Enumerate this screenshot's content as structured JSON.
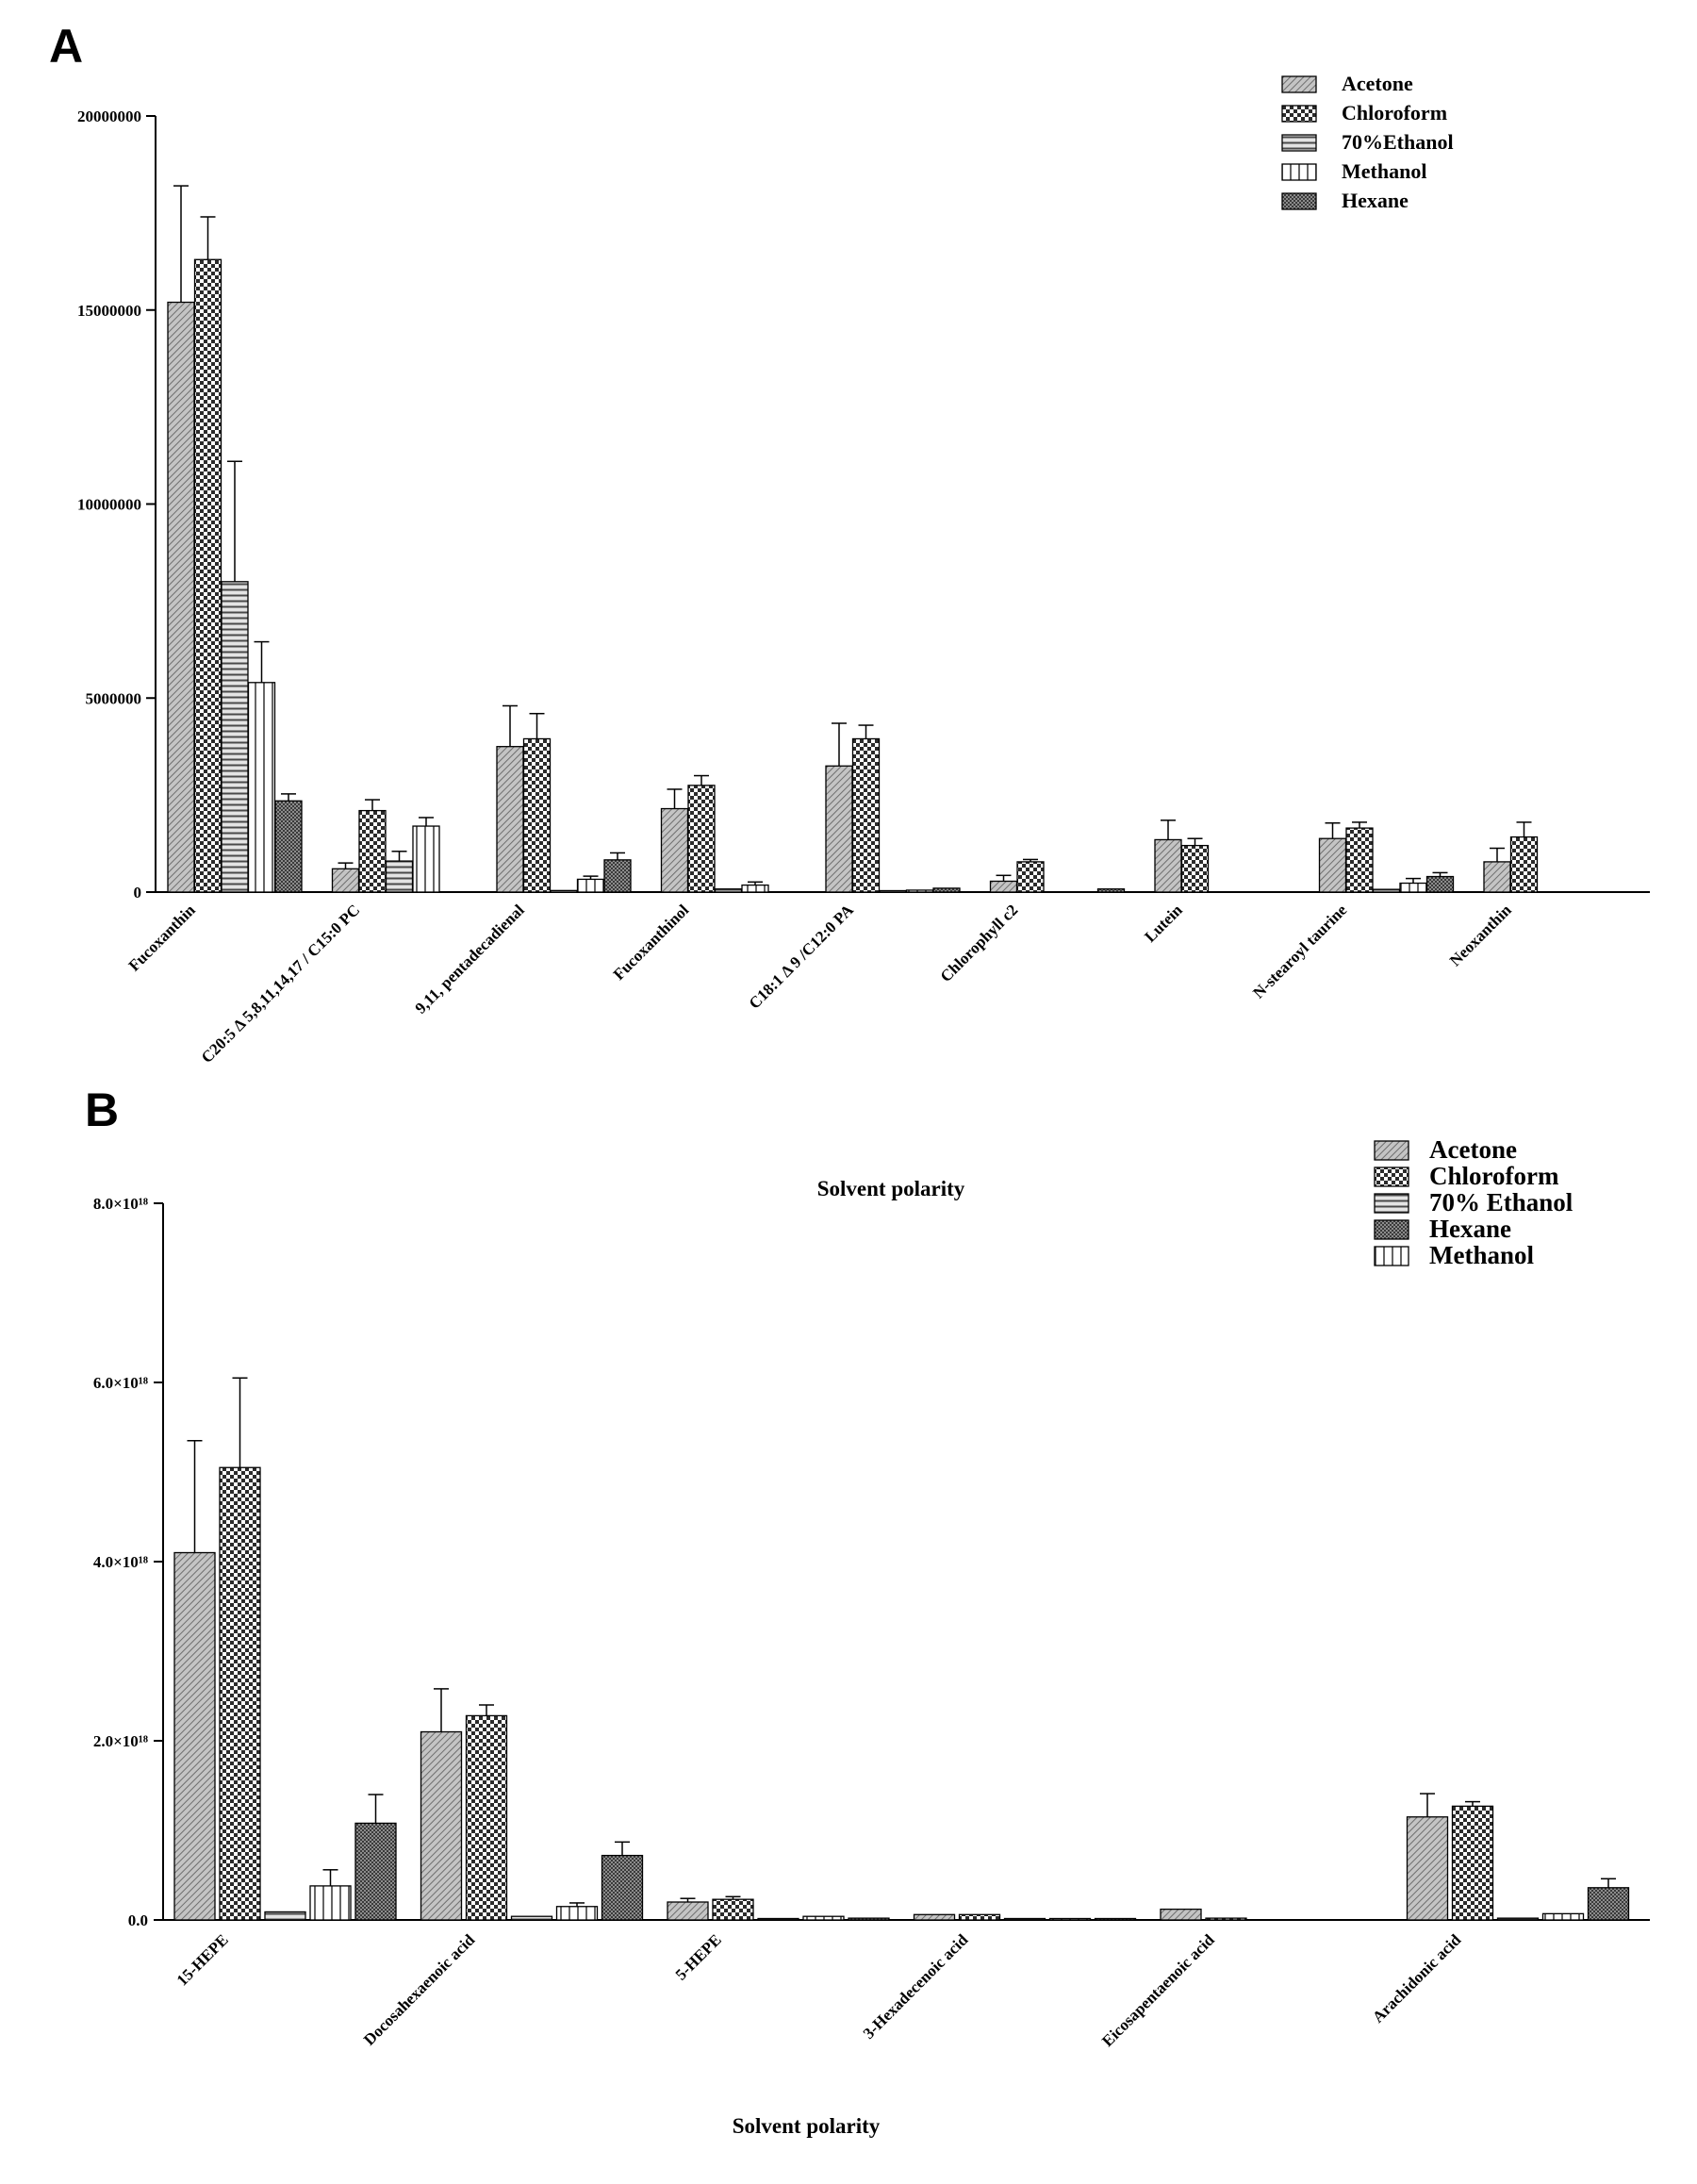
{
  "chart_data": [
    {
      "panel": "A",
      "type": "bar",
      "title": "",
      "xlabel": "Solvent polarity",
      "ylabel": "",
      "ylim": [
        0,
        20000000
      ],
      "yticks": [
        0,
        5000000,
        10000000,
        15000000,
        20000000
      ],
      "ytick_labels": [
        "0",
        "5000000",
        "10000000",
        "15000000",
        "20000000"
      ],
      "legend_position": "top-right",
      "categories": [
        "Fucoxanthin",
        "C20:5 Δ 5,8,11,14,17 / C15:0 PC",
        "9,11, pentadecadienal",
        "Fucoxanthinol",
        "C18:1 Δ 9 /C12:0 PA",
        "Chlorophyll c2",
        "Lutein",
        "N-stearoyl taurine",
        "Neoxanthin"
      ],
      "series": [
        {
          "name": "Acetone",
          "pattern": "diag",
          "values": [
            15200000,
            600000,
            3750000,
            2150000,
            3250000,
            280000,
            1350000,
            1380000,
            780000
          ],
          "errors": [
            3000000,
            150000,
            1050000,
            500000,
            1100000,
            150000,
            500000,
            400000,
            350000
          ]
        },
        {
          "name": " Chloroform",
          "pattern": "check",
          "values": [
            16300000,
            2100000,
            3950000,
            2750000,
            3950000,
            780000,
            1200000,
            1650000,
            1420000
          ],
          "errors": [
            1100000,
            280000,
            650000,
            250000,
            350000,
            60000,
            180000,
            150000,
            380000
          ]
        },
        {
          "name": "70%Ethanol",
          "pattern": "hlines",
          "values": [
            8000000,
            800000,
            40000,
            80000,
            20000,
            0,
            0,
            70000,
            0
          ],
          "errors": [
            3100000,
            250000,
            0,
            0,
            0,
            0,
            0,
            0,
            0
          ]
        },
        {
          "name": "Methanol",
          "pattern": "vlines",
          "values": [
            5400000,
            1700000,
            330000,
            180000,
            50000,
            0,
            0,
            230000,
            0
          ],
          "errors": [
            1050000,
            220000,
            80000,
            80000,
            0,
            0,
            0,
            120000,
            0
          ]
        },
        {
          "name": "Hexane",
          "pattern": "dense",
          "values": [
            2350000,
            0,
            830000,
            0,
            100000,
            80000,
            0,
            400000,
            0
          ],
          "errors": [
            180000,
            0,
            180000,
            0,
            0,
            0,
            0,
            100000,
            0
          ]
        }
      ]
    },
    {
      "panel": "B",
      "type": "bar",
      "title": "",
      "xlabel": "Solvent polarity",
      "ylabel": "",
      "ylim": [
        0,
        8e+18
      ],
      "yticks": [
        0,
        2e+18,
        4e+18,
        6e+18,
        8e+18
      ],
      "ytick_labels": [
        "0.0",
        "2.0×10¹⁸",
        "4.0×10¹⁸",
        "6.0×10¹⁸",
        "8.0×10¹⁸"
      ],
      "legend_position": "top-right",
      "categories": [
        "15-HEPE",
        "Docosahexaenoic acid",
        "5-HEPE",
        "3-Hexadecenoic acid",
        "Eicosapentaenoic acid",
        "Arachidonic acid"
      ],
      "series": [
        {
          "name": "Acetone",
          "pattern": "diag",
          "values": [
            4.1e+18,
            2.1e+18,
            2e+17,
            6e+16,
            1.2e+17,
            1.15e+18
          ],
          "errors": [
            1.25e+18,
            4.8e+17,
            4e+16,
            0,
            0,
            2.6e+17
          ]
        },
        {
          "name": "Chloroform",
          "pattern": "check",
          "values": [
            5.05e+18,
            2.28e+18,
            2.3e+17,
            6e+16,
            2e+16,
            1.27e+18
          ],
          "errors": [
            1e+18,
            1.2e+17,
            3e+16,
            0,
            0,
            5e+16
          ]
        },
        {
          "name": "70% Ethanol",
          "pattern": "hlines",
          "values": [
            9e+16,
            4e+16,
            1.5e+16,
            1e+16,
            0,
            2e+16
          ],
          "errors": [
            0,
            0,
            0,
            0,
            0,
            0
          ]
        },
        {
          "name": "Hexane",
          "pattern": "dense",
          "values": [
            1.08e+18,
            7.2e+17,
            2e+16,
            1e+16,
            0,
            3.6e+17
          ],
          "errors": [
            3.2e+17,
            1.5e+17,
            0,
            0,
            0,
            1e+17
          ]
        },
        {
          "name": "Methanol",
          "pattern": "vlines",
          "values": [
            3.8e+17,
            1.5e+17,
            4e+16,
            1e+16,
            0,
            7e+16
          ],
          "errors": [
            1.8e+17,
            4e+16,
            0,
            0,
            0,
            0
          ]
        }
      ],
      "draw_order": [
        0,
        1,
        2,
        4,
        3
      ]
    }
  ]
}
